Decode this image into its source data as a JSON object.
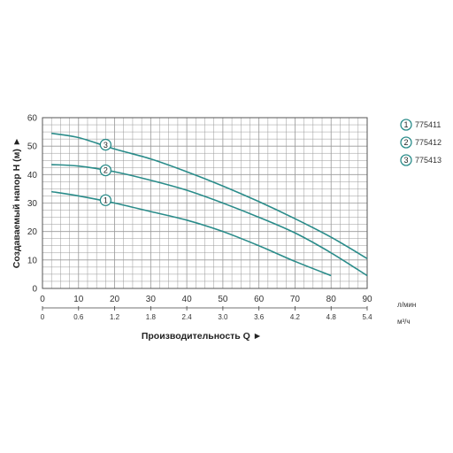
{
  "chart_data": {
    "type": "line",
    "xlabel": "Производительность Q ►",
    "ylabel": "Создаваемый напор H (м) ►",
    "x_unit": "л/мин",
    "x2_unit": "м³/ч",
    "xlim": [
      0,
      90
    ],
    "ylim": [
      0,
      60
    ],
    "x_ticks": [
      "0",
      "10",
      "20",
      "30",
      "40",
      "50",
      "60",
      "70",
      "80",
      "90"
    ],
    "x2_ticks": [
      "0",
      "0.6",
      "1.2",
      "1.8",
      "2.4",
      "3.0",
      "3.6",
      "4.2",
      "4.8",
      "5.4"
    ],
    "y_ticks": [
      "0",
      "10",
      "20",
      "30",
      "40",
      "50",
      "60"
    ],
    "grid": true,
    "legend_position": "right",
    "curve_color": "#2a8c8a",
    "grid_color": "#999999",
    "series": [
      {
        "name": "775411",
        "marker": "1",
        "x": [
          2.5,
          10,
          20,
          30,
          40,
          50,
          60,
          70,
          80
        ],
        "y": [
          34,
          32.5,
          30,
          27,
          24,
          20,
          15,
          9.5,
          4.5
        ]
      },
      {
        "name": "775412",
        "marker": "2",
        "x": [
          2.5,
          10,
          20,
          30,
          40,
          50,
          60,
          70,
          80,
          90
        ],
        "y": [
          43.5,
          43,
          41,
          38,
          34.5,
          30,
          25,
          19.5,
          12.5,
          4.5
        ]
      },
      {
        "name": "775413",
        "marker": "3",
        "x": [
          2.5,
          10,
          20,
          30,
          40,
          50,
          60,
          70,
          80,
          90
        ],
        "y": [
          54.5,
          53,
          49,
          45.5,
          41,
          36,
          30.5,
          24.5,
          18,
          10.5
        ]
      }
    ],
    "curve_markers": [
      {
        "label": "3",
        "x": 17.5,
        "y": 50.5
      },
      {
        "label": "2",
        "x": 17.5,
        "y": 41.5
      },
      {
        "label": "1",
        "x": 17.5,
        "y": 31
      }
    ]
  }
}
